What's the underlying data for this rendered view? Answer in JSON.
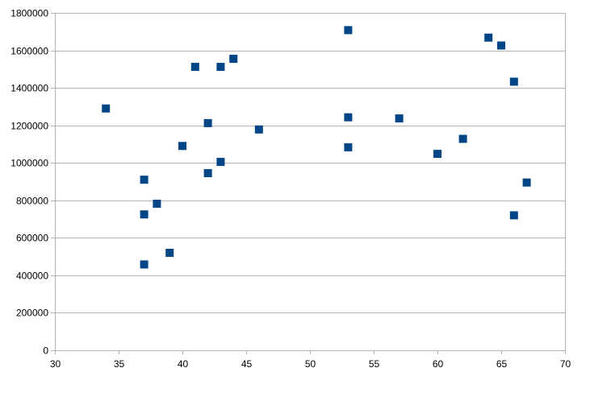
{
  "chart_data": {
    "type": "scatter",
    "title": "",
    "xlabel": "",
    "ylabel": "",
    "xlim": [
      30,
      70
    ],
    "ylim": [
      0,
      1800000
    ],
    "x_ticks": [
      30,
      35,
      40,
      45,
      50,
      55,
      60,
      65,
      70
    ],
    "y_ticks": [
      0,
      200000,
      400000,
      600000,
      800000,
      1000000,
      1200000,
      1400000,
      1600000,
      1800000
    ],
    "grid": "horizontal",
    "legend": "none",
    "marker": "square",
    "marker_color": "#004586",
    "gridline_color": "#b3b3b3",
    "series": [
      {
        "points": [
          [
            34,
            1290000
          ],
          [
            37,
            910000
          ],
          [
            37,
            725000
          ],
          [
            37,
            458000
          ],
          [
            38,
            782000
          ],
          [
            39,
            520000
          ],
          [
            40,
            1090000
          ],
          [
            41,
            1512000
          ],
          [
            42,
            1212000
          ],
          [
            42,
            945000
          ],
          [
            43,
            1512000
          ],
          [
            43,
            1005000
          ],
          [
            44,
            1555000
          ],
          [
            46,
            1178000
          ],
          [
            53,
            1708000
          ],
          [
            53,
            1243000
          ],
          [
            53,
            1083000
          ],
          [
            57,
            1237000
          ],
          [
            60,
            1048000
          ],
          [
            62,
            1128000
          ],
          [
            64,
            1668000
          ],
          [
            65,
            1626000
          ],
          [
            66,
            1433000
          ],
          [
            66,
            720000
          ],
          [
            67,
            895000
          ]
        ]
      }
    ]
  }
}
